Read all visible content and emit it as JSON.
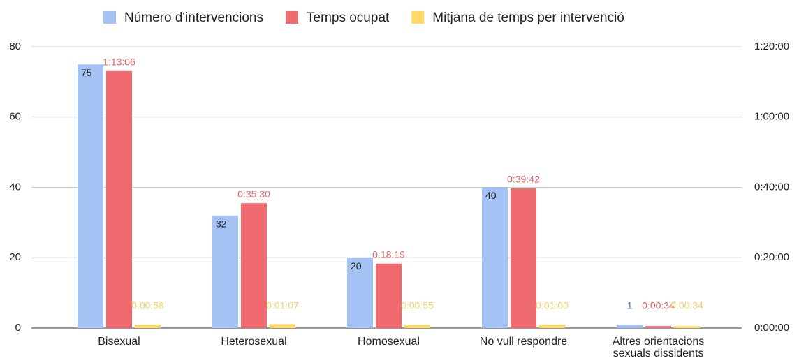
{
  "chart_data": {
    "type": "bar",
    "categories": [
      "Bisexual",
      "Heterosexual",
      "Homosexual",
      "No vull respondre",
      "Altres orientacions sexuals dissidents"
    ],
    "series": [
      {
        "name": "Número d'intervencions",
        "color": "#a4c2f4",
        "values": [
          75,
          32,
          20,
          40,
          1
        ]
      },
      {
        "name": "Temps ocupat",
        "color": "#f06b70",
        "axis": "y2",
        "values": [
          4386,
          2130,
          1099,
          2382,
          34
        ],
        "value_labels": [
          "1:13:06",
          "0:35:30",
          "0:18:19",
          "0:39:42",
          "0:00:34"
        ]
      },
      {
        "name": "Mitjana de temps per intervenció",
        "color": "#ffd966",
        "axis": "y2",
        "values": [
          58,
          67,
          55,
          60,
          34
        ],
        "value_labels": [
          "0:00:58",
          "0:01:07",
          "0:00:55",
          "0:01:00",
          "0:00:34"
        ]
      }
    ],
    "ylim": [
      0,
      80
    ],
    "yticks": [
      0,
      20,
      40,
      60,
      80
    ],
    "y2lim": [
      0,
      4800
    ],
    "y2ticks": [
      {
        "value": 0,
        "label": "0:00:00"
      },
      {
        "value": 1200,
        "label": "0:20:00"
      },
      {
        "value": 2400,
        "label": "0:40:00"
      },
      {
        "value": 3600,
        "label": "1:00:00"
      },
      {
        "value": 4800,
        "label": "1:20:00"
      }
    ],
    "grid": true,
    "legend": "top"
  }
}
